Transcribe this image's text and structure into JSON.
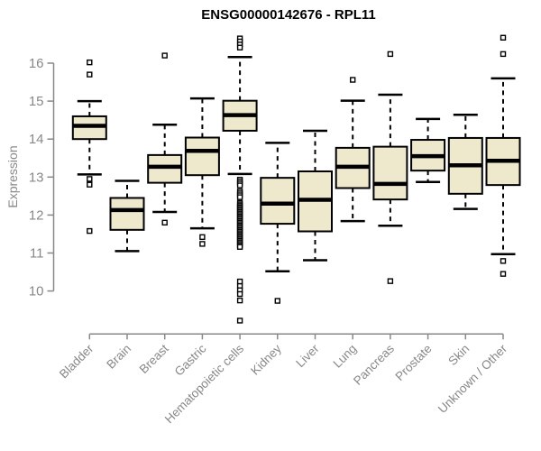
{
  "title": "ENSG00000142676 - RPL11",
  "chart_data": {
    "type": "boxplot",
    "title": "ENSG00000142676 - RPL11",
    "xlabel": "",
    "ylabel": "Expression",
    "ylim": [
      10,
      16
    ],
    "yticks": [
      10,
      11,
      12,
      13,
      14,
      15,
      16
    ],
    "grid": false,
    "legend": "none",
    "categories": [
      "Bladder",
      "Brain",
      "Breast",
      "Gastric",
      "Hematopoietic cells",
      "Kidney",
      "Liver",
      "Lung",
      "Pancreas",
      "Prostate",
      "Skin",
      "Unknown / Other"
    ],
    "colors": {
      "box_fill": "#EEE8CD",
      "box_stroke": "#000000",
      "axis": "#888888",
      "title": "#000000"
    },
    "boxes": [
      {
        "category": "Bladder",
        "whisker_low": 13.07,
        "q1": 14.0,
        "median": 14.35,
        "q3": 14.6,
        "whisker_high": 15.0,
        "outliers": [
          16.02,
          15.7,
          12.95,
          12.8,
          11.58
        ]
      },
      {
        "category": "Brain",
        "whisker_low": 11.05,
        "q1": 11.61,
        "median": 12.13,
        "q3": 12.45,
        "whisker_high": 12.9,
        "outliers": []
      },
      {
        "category": "Breast",
        "whisker_low": 12.08,
        "q1": 12.85,
        "median": 13.27,
        "q3": 13.58,
        "whisker_high": 14.38,
        "outliers": [
          16.2,
          11.8
        ]
      },
      {
        "category": "Gastric",
        "whisker_low": 11.65,
        "q1": 13.05,
        "median": 13.69,
        "q3": 14.04,
        "whisker_high": 15.07,
        "outliers": [
          11.42,
          11.24
        ]
      },
      {
        "category": "Hematopoietic cells",
        "whisker_low": 13.08,
        "q1": 14.22,
        "median": 14.63,
        "q3": 15.01,
        "whisker_high": 16.16,
        "outliers": [
          16.65,
          16.57,
          16.49,
          16.41,
          12.93,
          12.88,
          12.83,
          12.78,
          12.62,
          12.57,
          12.52,
          12.47,
          12.32,
          12.28,
          12.24,
          12.2,
          12.16,
          12.12,
          12.08,
          12.04,
          12.0,
          11.96,
          11.92,
          11.88,
          11.84,
          11.8,
          11.76,
          11.72,
          11.68,
          11.64,
          11.6,
          11.56,
          11.52,
          11.48,
          11.44,
          11.4,
          11.36,
          11.32,
          11.28,
          11.24,
          11.2,
          11.16,
          10.25,
          10.13,
          10.02,
          9.92,
          9.75,
          9.22
        ]
      },
      {
        "category": "Kidney",
        "whisker_low": 10.52,
        "q1": 11.77,
        "median": 12.3,
        "q3": 12.98,
        "whisker_high": 13.9,
        "outliers": [
          9.74
        ]
      },
      {
        "category": "Liver",
        "whisker_low": 10.81,
        "q1": 11.57,
        "median": 12.4,
        "q3": 13.15,
        "whisker_high": 14.22,
        "outliers": []
      },
      {
        "category": "Lung",
        "whisker_low": 11.84,
        "q1": 12.71,
        "median": 13.27,
        "q3": 13.77,
        "whisker_high": 15.01,
        "outliers": [
          15.56
        ]
      },
      {
        "category": "Pancreas",
        "whisker_low": 11.72,
        "q1": 12.41,
        "median": 12.82,
        "q3": 13.8,
        "whisker_high": 15.17,
        "outliers": [
          16.24,
          10.26
        ]
      },
      {
        "category": "Prostate",
        "whisker_low": 12.87,
        "q1": 13.17,
        "median": 13.55,
        "q3": 13.98,
        "whisker_high": 14.53,
        "outliers": []
      },
      {
        "category": "Skin",
        "whisker_low": 12.16,
        "q1": 12.56,
        "median": 13.31,
        "q3": 14.03,
        "whisker_high": 14.64,
        "outliers": []
      },
      {
        "category": "Unknown / Other",
        "whisker_low": 10.97,
        "q1": 12.79,
        "median": 13.43,
        "q3": 14.03,
        "whisker_high": 15.6,
        "outliers": [
          16.67,
          16.24,
          10.79,
          10.45
        ]
      }
    ]
  }
}
